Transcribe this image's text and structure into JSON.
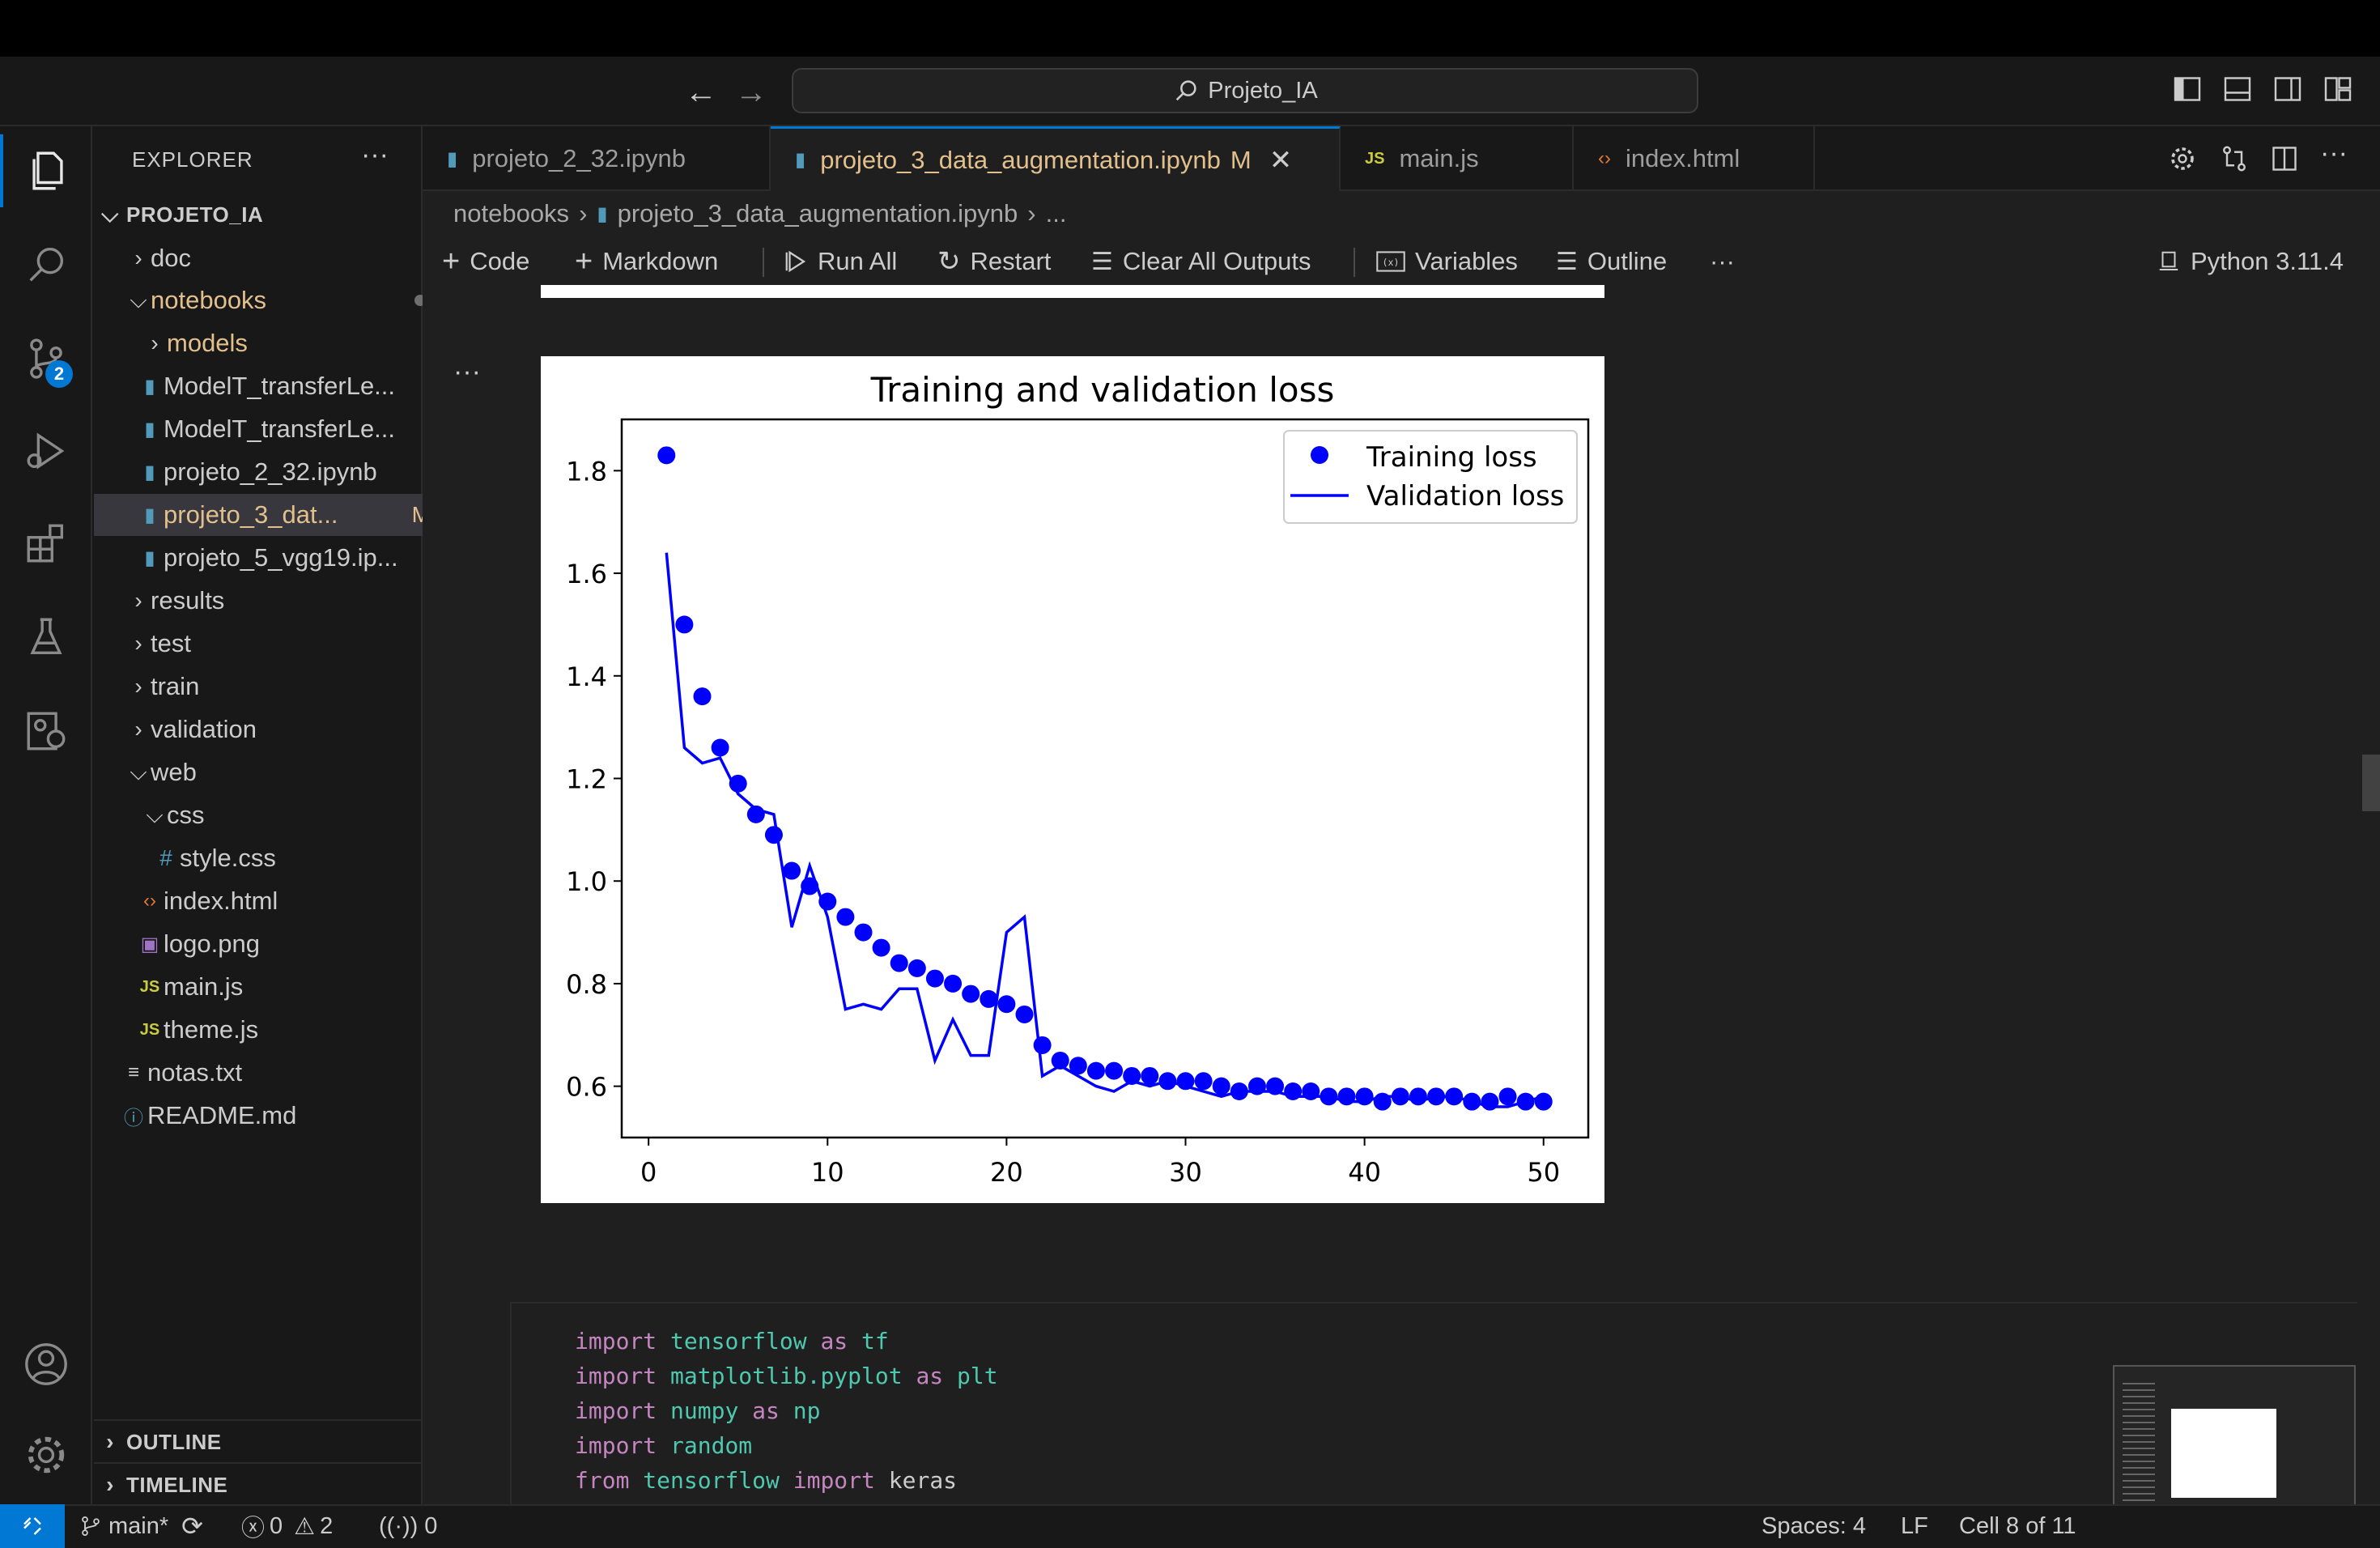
{
  "window": {
    "search_text": "Projeto_IA"
  },
  "sidebar": {
    "title": "EXPLORER",
    "root": "PROJETO_IA",
    "items": [
      {
        "label": "doc",
        "kind": "folder"
      },
      {
        "label": "notebooks",
        "kind": "folder-open"
      },
      {
        "label": "models",
        "kind": "folder"
      },
      {
        "label": "ModelT_transferLe...",
        "kind": "notebook"
      },
      {
        "label": "ModelT_transferLe...",
        "kind": "notebook"
      },
      {
        "label": "projeto_2_32.ipynb",
        "kind": "notebook"
      },
      {
        "label": "projeto_3_dat...",
        "kind": "notebook",
        "badge": "M"
      },
      {
        "label": "projeto_5_vgg19.ip...",
        "kind": "notebook"
      },
      {
        "label": "results",
        "kind": "folder"
      },
      {
        "label": "test",
        "kind": "folder"
      },
      {
        "label": "train",
        "kind": "folder"
      },
      {
        "label": "validation",
        "kind": "folder"
      },
      {
        "label": "web",
        "kind": "folder-open"
      },
      {
        "label": "css",
        "kind": "folder-open"
      },
      {
        "label": "style.css",
        "kind": "css"
      },
      {
        "label": "index.html",
        "kind": "html"
      },
      {
        "label": "logo.png",
        "kind": "image"
      },
      {
        "label": "main.js",
        "kind": "js"
      },
      {
        "label": "theme.js",
        "kind": "js"
      },
      {
        "label": "notas.txt",
        "kind": "text"
      },
      {
        "label": "README.md",
        "kind": "info"
      }
    ],
    "sections": {
      "outline": "OUTLINE",
      "timeline": "TIMELINE"
    },
    "scm_badge": "2"
  },
  "tabs": [
    {
      "label": "projeto_2_32.ipynb",
      "icon": "notebook"
    },
    {
      "label": "projeto_3_data_augmentation.ipynb",
      "icon": "notebook",
      "badge": "M",
      "active": true
    },
    {
      "label": "main.js",
      "icon": "js"
    },
    {
      "label": "index.html",
      "icon": "html"
    }
  ],
  "breadcrumb": {
    "folder": "notebooks",
    "file": "projeto_3_data_augmentation.ipynb",
    "more": "..."
  },
  "toolbar": {
    "code": "Code",
    "markdown": "Markdown",
    "run_all": "Run All",
    "restart": "Restart",
    "clear_outputs": "Clear All Outputs",
    "variables": "Variables",
    "outline": "Outline",
    "more": "···",
    "kernel": "Python 3.11.4"
  },
  "chart_data": {
    "type": "scatter",
    "title": "Training and validation loss",
    "xlim": [
      -1.5,
      52.5
    ],
    "ylim": [
      0.5,
      1.9
    ],
    "xticks": [
      0,
      10,
      20,
      30,
      40,
      50
    ],
    "yticks": [
      0.6,
      0.8,
      1.0,
      1.2,
      1.4,
      1.6,
      1.8
    ],
    "legend_position": "top-right",
    "series": [
      {
        "name": "Training loss",
        "style": "dots",
        "color": "#0000ff",
        "x": [
          1,
          2,
          3,
          4,
          5,
          6,
          7,
          8,
          9,
          10,
          11,
          12,
          13,
          14,
          15,
          16,
          17,
          18,
          19,
          20,
          21,
          22,
          23,
          24,
          25,
          26,
          27,
          28,
          29,
          30,
          31,
          32,
          33,
          34,
          35,
          36,
          37,
          38,
          39,
          40,
          41,
          42,
          43,
          44,
          45,
          46,
          47,
          48,
          49,
          50
        ],
        "values": [
          1.83,
          1.5,
          1.36,
          1.26,
          1.19,
          1.13,
          1.09,
          1.02,
          0.99,
          0.96,
          0.93,
          0.9,
          0.87,
          0.84,
          0.83,
          0.81,
          0.8,
          0.78,
          0.77,
          0.76,
          0.74,
          0.68,
          0.65,
          0.64,
          0.63,
          0.63,
          0.62,
          0.62,
          0.61,
          0.61,
          0.61,
          0.6,
          0.59,
          0.6,
          0.6,
          0.59,
          0.59,
          0.58,
          0.58,
          0.58,
          0.57,
          0.58,
          0.58,
          0.58,
          0.58,
          0.57,
          0.57,
          0.58,
          0.57,
          0.57
        ]
      },
      {
        "name": "Validation loss",
        "style": "line",
        "color": "#0000ff",
        "x": [
          1,
          2,
          3,
          4,
          5,
          6,
          7,
          8,
          9,
          10,
          11,
          12,
          13,
          14,
          15,
          16,
          17,
          18,
          19,
          20,
          21,
          22,
          23,
          24,
          25,
          26,
          27,
          28,
          29,
          30,
          31,
          32,
          33,
          34,
          35,
          36,
          37,
          38,
          39,
          40,
          41,
          42,
          43,
          44,
          45,
          46,
          47,
          48,
          49,
          50
        ],
        "values": [
          1.64,
          1.26,
          1.23,
          1.24,
          1.17,
          1.14,
          1.13,
          0.91,
          1.03,
          0.93,
          0.75,
          0.76,
          0.75,
          0.79,
          0.79,
          0.65,
          0.73,
          0.66,
          0.66,
          0.9,
          0.93,
          0.62,
          0.64,
          0.62,
          0.6,
          0.59,
          0.61,
          0.6,
          0.61,
          0.6,
          0.59,
          0.58,
          0.59,
          0.59,
          0.59,
          0.58,
          0.58,
          0.58,
          0.57,
          0.57,
          0.58,
          0.58,
          0.57,
          0.58,
          0.58,
          0.57,
          0.56,
          0.56,
          0.57,
          0.58
        ]
      }
    ]
  },
  "code": {
    "lines": [
      {
        "kw": "import",
        "mod": "tensorflow",
        "kw2": "as",
        "alias": "tf"
      },
      {
        "kw": "import",
        "mod": "matplotlib.pyplot",
        "kw2": "as",
        "alias": "plt"
      },
      {
        "kw": "import",
        "mod": "numpy",
        "kw2": "as",
        "alias": "np"
      },
      {
        "kw": "import",
        "mod": "random",
        "kw2": "",
        "alias": ""
      },
      {
        "kw": "from",
        "mod": "tensorflow",
        "kw2": "import",
        "alias": "keras"
      }
    ]
  },
  "statusbar": {
    "branch": "main*",
    "errors": "0",
    "warnings": "2",
    "ports": "0",
    "spaces": "Spaces: 4",
    "eol": "LF",
    "cell": "Cell 8 of 11"
  },
  "colors": {
    "accent": "#0078d4",
    "modified": "#e2c08d",
    "plot_blue": "#0000ff"
  }
}
